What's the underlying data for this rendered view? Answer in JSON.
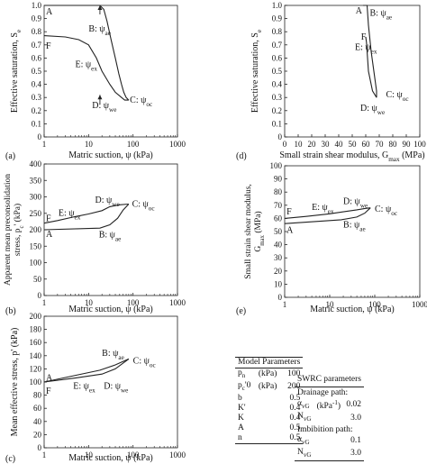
{
  "chart_data": [
    {
      "id": "a",
      "panel_label": "(a)",
      "type": "line",
      "xscale": "log",
      "xlim": [
        1,
        1000
      ],
      "ylim": [
        0,
        1
      ],
      "xticks": [
        "1",
        "10",
        "100",
        "1000"
      ],
      "yticks": [
        "0",
        "0.1",
        "0.2",
        "0.3",
        "0.4",
        "0.5",
        "0.6",
        "0.7",
        "0.8",
        "0.9",
        "1.0"
      ],
      "xlabel": "Matric suction, ψ (kPa)",
      "ylabel": "Effective saturation, S",
      "ylabel_sub": "e",
      "series": [
        {
          "path": "drainage",
          "x": [
            1,
            18,
            22,
            26,
            32,
            40,
            48,
            55,
            62,
            70,
            80
          ],
          "y": [
            1.0,
            1.0,
            0.97,
            0.88,
            0.74,
            0.6,
            0.48,
            0.4,
            0.34,
            0.3,
            0.28
          ]
        },
        {
          "path": "imbibition",
          "x": [
            1,
            3,
            6,
            10,
            15,
            20,
            30,
            40,
            55,
            65,
            80
          ],
          "y": [
            0.77,
            0.76,
            0.74,
            0.7,
            0.6,
            0.5,
            0.4,
            0.34,
            0.3,
            0.28,
            0.28
          ]
        }
      ],
      "annotations": [
        {
          "main": "A",
          "sub": "",
          "x": 1.1,
          "y": 0.93
        },
        {
          "main": "B: ψ",
          "sub": "ae",
          "x": 10,
          "y": 0.8,
          "arrow_to": [
            18,
            1.0
          ]
        },
        {
          "main": "F",
          "sub": "",
          "x": 1.1,
          "y": 0.67
        },
        {
          "main": "E: ψ",
          "sub": "ex",
          "x": 5,
          "y": 0.53
        },
        {
          "main": "C: ψ",
          "sub": "oc",
          "x": 85,
          "y": 0.26
        },
        {
          "main": "D: ψ",
          "sub": "we",
          "x": 12,
          "y": 0.22,
          "arrow_to": [
            18,
            0.32
          ]
        }
      ]
    },
    {
      "id": "d",
      "panel_label": "(d)",
      "type": "line",
      "xlim": [
        0,
        100
      ],
      "ylim": [
        0,
        1
      ],
      "xticks": [
        "0",
        "10",
        "20",
        "30",
        "40",
        "50",
        "60",
        "70",
        "80",
        "90",
        "100"
      ],
      "yticks": [
        "0",
        "0.1",
        "0.2",
        "0.3",
        "0.4",
        "0.5",
        "0.6",
        "0.7",
        "0.8",
        "0.9",
        "1.0"
      ],
      "xlabel": "Small strain shear modulus, G",
      "xlabel_sub": "max",
      "xlabel_tail": " (MPa)",
      "ylabel": "Effective saturation, S",
      "ylabel_sub": "e",
      "series": [
        {
          "path": "drainage",
          "x": [
            58,
            61,
            62,
            64,
            66,
            68,
            68
          ],
          "y": [
            1.0,
            1.0,
            0.85,
            0.65,
            0.5,
            0.35,
            0.3
          ]
        },
        {
          "path": "imbibition",
          "x": [
            60,
            60.5,
            61,
            62,
            65,
            68
          ],
          "y": [
            0.76,
            0.72,
            0.65,
            0.5,
            0.35,
            0.3
          ]
        }
      ],
      "annotations": [
        {
          "main": "A",
          "sub": "",
          "x": 52.5,
          "y": 0.94
        },
        {
          "main": "B: ψ",
          "sub": "ae",
          "x": 63,
          "y": 0.92
        },
        {
          "main": "F",
          "sub": "",
          "x": 56.5,
          "y": 0.74
        },
        {
          "main": "E: ψ",
          "sub": "ex",
          "x": 52,
          "y": 0.66
        },
        {
          "main": "C: ψ",
          "sub": "oc",
          "x": 75,
          "y": 0.3
        },
        {
          "main": "D: ψ",
          "sub": "we",
          "x": 56,
          "y": 0.2
        }
      ]
    },
    {
      "id": "b",
      "panel_label": "(b)",
      "type": "line",
      "xscale": "log",
      "xlim": [
        1,
        1000
      ],
      "ylim": [
        0,
        400
      ],
      "xticks": [
        "1",
        "10",
        "100",
        "1000"
      ],
      "yticks": [
        "0",
        "50",
        "100",
        "150",
        "200",
        "250",
        "300",
        "350",
        "400"
      ],
      "xlabel": "Matric suction, ψ (kPa)",
      "ylabel": "Apparent mean preconsolidation",
      "ylabel2": "stress, p",
      "ylabel2_sub": "c",
      "ylabel2_tail": "' (kPa)",
      "series": [
        {
          "path": "drainage",
          "x": [
            1,
            18,
            30,
            45,
            60,
            80
          ],
          "y": [
            200,
            205,
            215,
            235,
            260,
            278
          ]
        },
        {
          "path": "imbibition",
          "x": [
            1,
            2,
            5,
            10,
            20,
            30,
            50,
            80
          ],
          "y": [
            220,
            228,
            240,
            248,
            258,
            270,
            276,
            278
          ]
        }
      ],
      "annotations": [
        {
          "main": "A",
          "sub": "",
          "x": 1.1,
          "y": 178
        },
        {
          "main": "F",
          "sub": "",
          "x": 1.1,
          "y": 226
        },
        {
          "main": "E: ψ",
          "sub": "ex",
          "x": 2.1,
          "y": 243
        },
        {
          "main": "D: ψ",
          "sub": "we",
          "x": 14,
          "y": 282
        },
        {
          "main": "C: ψ",
          "sub": "oc",
          "x": 95,
          "y": 270
        },
        {
          "main": "B: ψ",
          "sub": "ae",
          "x": 17,
          "y": 177
        }
      ]
    },
    {
      "id": "e",
      "panel_label": "(e)",
      "type": "line",
      "xscale": "log",
      "xlim": [
        1,
        1000
      ],
      "ylim": [
        0,
        100
      ],
      "xticks": [
        "1",
        "10",
        "100",
        "1000"
      ],
      "yticks": [
        "0",
        "10",
        "20",
        "30",
        "40",
        "50",
        "60",
        "70",
        "80",
        "90",
        "100"
      ],
      "xlabel": "Matric suction, ψ (kPa)",
      "ylabel": "Small strain shear modulus,",
      "ylabel2": "G",
      "ylabel2_sub": "max",
      "ylabel2_tail": " (MPa)",
      "series": [
        {
          "path": "drainage",
          "x": [
            1,
            18,
            40,
            60,
            80
          ],
          "y": [
            56,
            59,
            61,
            64,
            68
          ]
        },
        {
          "path": "imbibition",
          "x": [
            1,
            3,
            10,
            20,
            40,
            60,
            80
          ],
          "y": [
            60,
            61.5,
            63.5,
            65,
            66.5,
            67.5,
            68
          ]
        }
      ],
      "annotations": [
        {
          "main": "F",
          "sub": "",
          "x": 1.1,
          "y": 63
        },
        {
          "main": "A",
          "sub": "",
          "x": 1.1,
          "y": 49
        },
        {
          "main": "E: ψ",
          "sub": "ex",
          "x": 4,
          "y": 66.5
        },
        {
          "main": "D: ψ",
          "sub": "we",
          "x": 20,
          "y": 71
        },
        {
          "main": "C: ψ",
          "sub": "oc",
          "x": 100,
          "y": 65
        },
        {
          "main": "B: ψ",
          "sub": "ae",
          "x": 20,
          "y": 53
        }
      ]
    },
    {
      "id": "c",
      "panel_label": "(c)",
      "type": "line",
      "xscale": "log",
      "xlim": [
        1,
        1000
      ],
      "ylim": [
        0,
        200
      ],
      "xticks": [
        "1",
        "10",
        "100",
        "1000"
      ],
      "yticks": [
        "0",
        "20",
        "40",
        "60",
        "80",
        "100",
        "120",
        "140",
        "160",
        "180",
        "200"
      ],
      "xlabel": "Matric suction, ψ (kPa)",
      "ylabel": "Mean effective stress, p' (kPa)",
      "series": [
        {
          "path": "drainage",
          "x": [
            1,
            18,
            40,
            80
          ],
          "y": [
            100,
            118,
            126,
            135
          ]
        },
        {
          "path": "imbibition",
          "x": [
            1,
            5,
            20,
            40,
            80
          ],
          "y": [
            100,
            106,
            112,
            120,
            135
          ]
        }
      ],
      "annotations": [
        {
          "main": "A",
          "sub": "",
          "x": 1.1,
          "y": 102
        },
        {
          "main": "F",
          "sub": "",
          "x": 1.1,
          "y": 82
        },
        {
          "main": "B: ψ",
          "sub": "ae",
          "x": 20,
          "y": 140
        },
        {
          "main": "C: ψ",
          "sub": "oc",
          "x": 100,
          "y": 128
        },
        {
          "main": "E: ψ",
          "sub": "ex",
          "x": 4.5,
          "y": 90
        },
        {
          "main": "D: ψ",
          "sub": "we",
          "x": 22,
          "y": 90
        }
      ]
    }
  ],
  "model_parameters": {
    "title": "Model Parameters",
    "rows": [
      {
        "name": "p",
        "sub": "n",
        "tail": "",
        "unit": "(kPa)",
        "value": "100"
      },
      {
        "name": "p",
        "sub": "c",
        "tail": "'0",
        "unit": "(kPa)",
        "value": "200"
      },
      {
        "name": "b",
        "sub": "",
        "tail": "",
        "unit": "",
        "value": "0.5"
      },
      {
        "name": "K'",
        "sub": "",
        "tail": "",
        "unit": "",
        "value": "0.4"
      },
      {
        "name": "K",
        "sub": "",
        "tail": "",
        "unit": "",
        "value": "0.4"
      },
      {
        "name": "A",
        "sub": "",
        "tail": "",
        "unit": "",
        "value": "0.5"
      },
      {
        "name": "n",
        "sub": "",
        "tail": "",
        "unit": "",
        "value": "0.5"
      }
    ]
  },
  "swrc_parameters": {
    "title": "SWRC parameters",
    "drainage_title": "Drainage path:",
    "drainage_rows": [
      {
        "name": "α",
        "sub": "vG",
        "unit": "(kPa",
        "unit_sup": "-1",
        "unit_tail": ")",
        "value": "0.02"
      },
      {
        "name": "N",
        "sub": "vG",
        "unit": "",
        "unit_sup": "",
        "unit_tail": "",
        "value": "3.0"
      }
    ],
    "imbibition_title": "Imbibition path:",
    "imbibition_rows": [
      {
        "name": "α",
        "sub": "vG",
        "unit": "",
        "unit_sup": "",
        "unit_tail": "",
        "value": "0.1"
      },
      {
        "name": "N",
        "sub": "vG",
        "unit": "",
        "unit_sup": "",
        "unit_tail": "",
        "value": "3.0"
      }
    ]
  }
}
